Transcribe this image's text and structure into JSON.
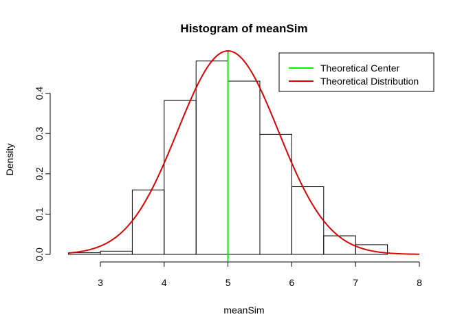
{
  "chart_data": {
    "type": "bar",
    "title": "Histogram of meanSim",
    "xlabel": "meanSim",
    "ylabel": "Density",
    "xlim": [
      2.5,
      8
    ],
    "ylim": [
      0,
      0.5
    ],
    "x_ticks": [
      3,
      4,
      5,
      6,
      7,
      8
    ],
    "y_ticks": [
      0.0,
      0.1,
      0.2,
      0.3,
      0.4
    ],
    "y_tick_labels": [
      "0.0",
      "0.1",
      "0.2",
      "0.3",
      "0.4"
    ],
    "bins": [
      {
        "from": 2.5,
        "to": 3.0,
        "density": 0.004
      },
      {
        "from": 3.0,
        "to": 3.5,
        "density": 0.008
      },
      {
        "from": 3.5,
        "to": 4.0,
        "density": 0.16
      },
      {
        "from": 4.0,
        "to": 4.5,
        "density": 0.382
      },
      {
        "from": 4.5,
        "to": 5.0,
        "density": 0.48
      },
      {
        "from": 5.0,
        "to": 5.5,
        "density": 0.43
      },
      {
        "from": 5.5,
        "to": 6.0,
        "density": 0.298
      },
      {
        "from": 6.0,
        "to": 6.5,
        "density": 0.168
      },
      {
        "from": 6.5,
        "to": 7.0,
        "density": 0.046
      },
      {
        "from": 7.0,
        "to": 7.5,
        "density": 0.024
      }
    ],
    "series": [
      {
        "name": "Theoretical Center",
        "type": "vline",
        "x": 5,
        "color": "#00ee00"
      },
      {
        "name": "Theoretical Distribution",
        "type": "line",
        "distribution": "normal",
        "mean": 5,
        "sd": 0.79,
        "color": "#dd0000"
      }
    ],
    "legend": {
      "position": "top-right",
      "entries": [
        "Theoretical Center",
        "Theoretical Distribution"
      ]
    },
    "grid": false
  }
}
